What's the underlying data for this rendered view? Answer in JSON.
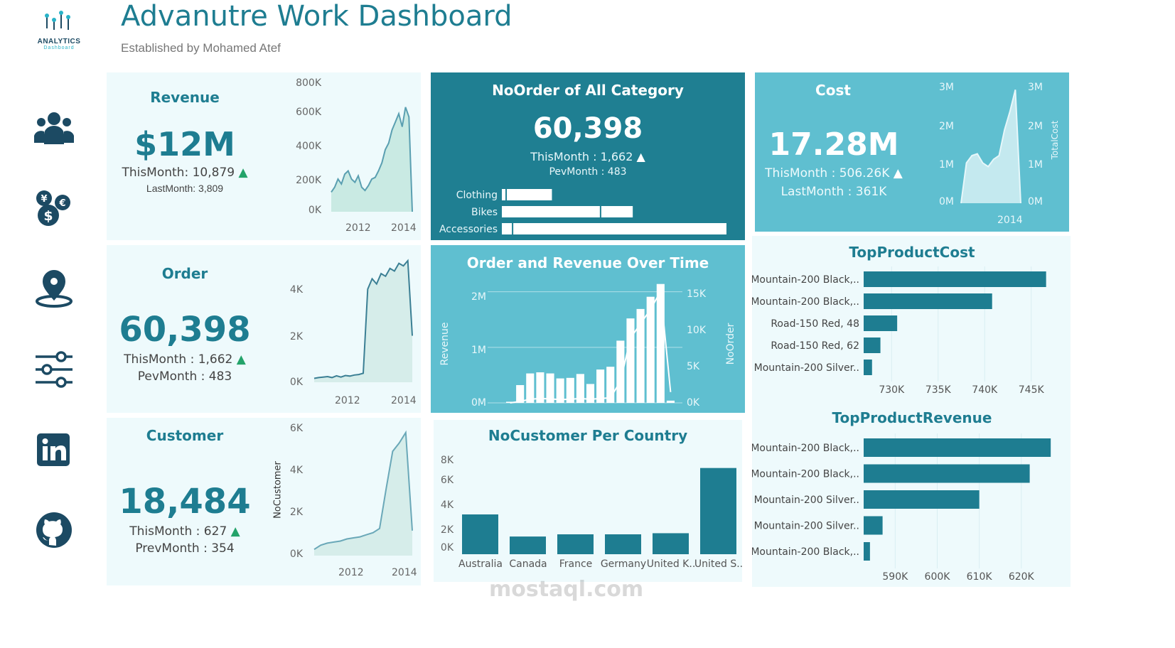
{
  "header": {
    "logo_line1": "ANALYTICS",
    "logo_line2": "Dashboard",
    "title": "Advanutre Work Dashboard",
    "subtitle": "Established by Mohamed Atef"
  },
  "sidebar": {
    "icons": [
      "users-icon",
      "currency-icon",
      "location-pin-icon",
      "sliders-icon",
      "linkedin-icon",
      "github-icon"
    ]
  },
  "revenue": {
    "title": "Revenue",
    "value": "$12M",
    "this_month": "ThisMonth: 10,879",
    "last_month": "LastMonth: 3,809",
    "y_ticks": [
      "800K",
      "600K",
      "400K",
      "200K",
      "0K"
    ],
    "x_ticks": [
      "2012",
      "2014"
    ]
  },
  "order": {
    "title": "Order",
    "value": "60,398",
    "this_month": "ThisMonth : 1,662",
    "prev_month": "PevMonth : 483",
    "y_ticks": [
      "4K",
      "2K",
      "0K"
    ],
    "x_ticks": [
      "2012",
      "2014"
    ]
  },
  "customer": {
    "title": "Customer",
    "value": "18,484",
    "this_month": "ThisMonth : 627",
    "prev_month": "PrevMonth : 354",
    "y_label": "NoCustomer",
    "y_ticks": [
      "6K",
      "4K",
      "2K",
      "0K"
    ],
    "x_ticks": [
      "2012",
      "2014"
    ]
  },
  "noorder_category": {
    "title": "NoOrder of All Category",
    "value": "60,398",
    "this_month": "ThisMonth : 1,662",
    "prev_month": "PevMonth : 483"
  },
  "order_revenue": {
    "title": "Order and Revenue Over Time",
    "left_label": "Revenue",
    "right_label": "NoOrder",
    "left_ticks": [
      "2M",
      "1M",
      "0M"
    ],
    "right_ticks": [
      "15K",
      "10K",
      "5K",
      "0K"
    ]
  },
  "nocustomer_country": {
    "title": "NoCustomer Per Country",
    "y_ticks": [
      "8K",
      "6K",
      "4K",
      "2K",
      "0K"
    ]
  },
  "cost": {
    "title": "Cost",
    "value": "17.28M",
    "this_month": "ThisMonth : 506.26K",
    "last_month": "LastMonth : 361K",
    "left_ticks": [
      "3M",
      "2M",
      "1M",
      "0M"
    ],
    "right_ticks": [
      "3M",
      "2M",
      "1M",
      "0M"
    ],
    "right_label": "TotalCost",
    "x_tick": "2014"
  },
  "top_product_cost": {
    "title": "TopProductCost",
    "x_ticks": [
      "730K",
      "735K",
      "740K",
      "745K"
    ]
  },
  "top_product_revenue": {
    "title": "TopProductRevenue",
    "x_ticks": [
      "590K",
      "600K",
      "610K",
      "620K"
    ]
  },
  "watermark": "mostaql.com",
  "colors": {
    "accent": "#1e7d91",
    "dark_panel": "#1f7f92",
    "mid_panel": "#5fbfd0",
    "light_panel": "#eefafc",
    "up_arrow": "#23a36a"
  },
  "chart_data": [
    {
      "id": "category",
      "type": "bar",
      "orientation": "horizontal",
      "categories": [
        "Clothing",
        "Bikes",
        "Accessories"
      ],
      "series": [
        {
          "values": [
            700,
            13900,
            1600
          ]
        },
        {
          "values": [
            6500,
            4600,
            30000
          ]
        }
      ]
    },
    {
      "id": "order_revenue",
      "type": "bar+line",
      "bars_name": "Revenue",
      "line_name": "NoOrder",
      "revenue_values": [
        0.02,
        0.32,
        0.53,
        0.55,
        0.53,
        0.44,
        0.45,
        0.52,
        0.34,
        0.6,
        0.65,
        1.12,
        1.52,
        1.69,
        1.91,
        2.14,
        0.04
      ],
      "noorder_values": [
        0,
        200,
        500,
        600,
        550,
        450,
        500,
        600,
        500,
        600,
        700,
        3000,
        9000,
        11000,
        13000,
        15500,
        1500
      ],
      "y_left_lim": [
        0,
        2.2
      ],
      "y_right_lim": [
        0,
        16000
      ]
    },
    {
      "id": "country",
      "type": "bar",
      "categories": [
        "Australia",
        "Canada",
        "France",
        "Germany",
        "United K..",
        "United S.."
      ],
      "values": [
        3600,
        1600,
        1800,
        1800,
        1900,
        7800
      ],
      "ylim": [
        0,
        9000
      ]
    },
    {
      "id": "top_cost",
      "type": "bar",
      "orientation": "horizontal",
      "categories": [
        "Mountain-200 Black,..",
        "Mountain-200 Black,..",
        "Road-150 Red, 48",
        "Road-150 Red, 62",
        "Mountain-200 Silver.."
      ],
      "values": [
        746.6,
        740.8,
        730.6,
        728.8,
        727.9
      ],
      "xlim": [
        727.0,
        748.0
      ]
    },
    {
      "id": "top_revenue",
      "type": "bar",
      "orientation": "horizontal",
      "categories": [
        "Mountain-200 Black,..",
        "Mountain-200 Black,..",
        "Mountain-200 Silver..",
        "Mountain-200 Silver..",
        "Mountain-200 Black,.."
      ],
      "values": [
        627,
        622,
        610,
        587,
        584
      ],
      "xlim": [
        582.5,
        629
      ]
    },
    {
      "id": "revenue_trend",
      "type": "area",
      "values": [
        120,
        150,
        200,
        170,
        230,
        250,
        200,
        180,
        220,
        150,
        130,
        160,
        200,
        210,
        250,
        300,
        380,
        420,
        500,
        550,
        600,
        520,
        640,
        580,
        0
      ]
    },
    {
      "id": "order_trend",
      "type": "area",
      "values": [
        150,
        180,
        200,
        220,
        180,
        250,
        200,
        260,
        240,
        280,
        300,
        350,
        3600,
        4000,
        3800,
        4200,
        4100,
        4400,
        4300,
        4600,
        4500,
        4700,
        1800
      ]
    },
    {
      "id": "customer_trend",
      "type": "area",
      "values": [
        300,
        500,
        600,
        650,
        700,
        800,
        850,
        900,
        1000,
        1100,
        1300,
        3200,
        5000,
        5400,
        5900,
        1200
      ]
    },
    {
      "id": "cost_trend",
      "type": "area",
      "values": [
        0,
        1100,
        1300,
        1350,
        1100,
        1000,
        1200,
        1300,
        2000,
        2500,
        3100,
        0
      ]
    }
  ]
}
